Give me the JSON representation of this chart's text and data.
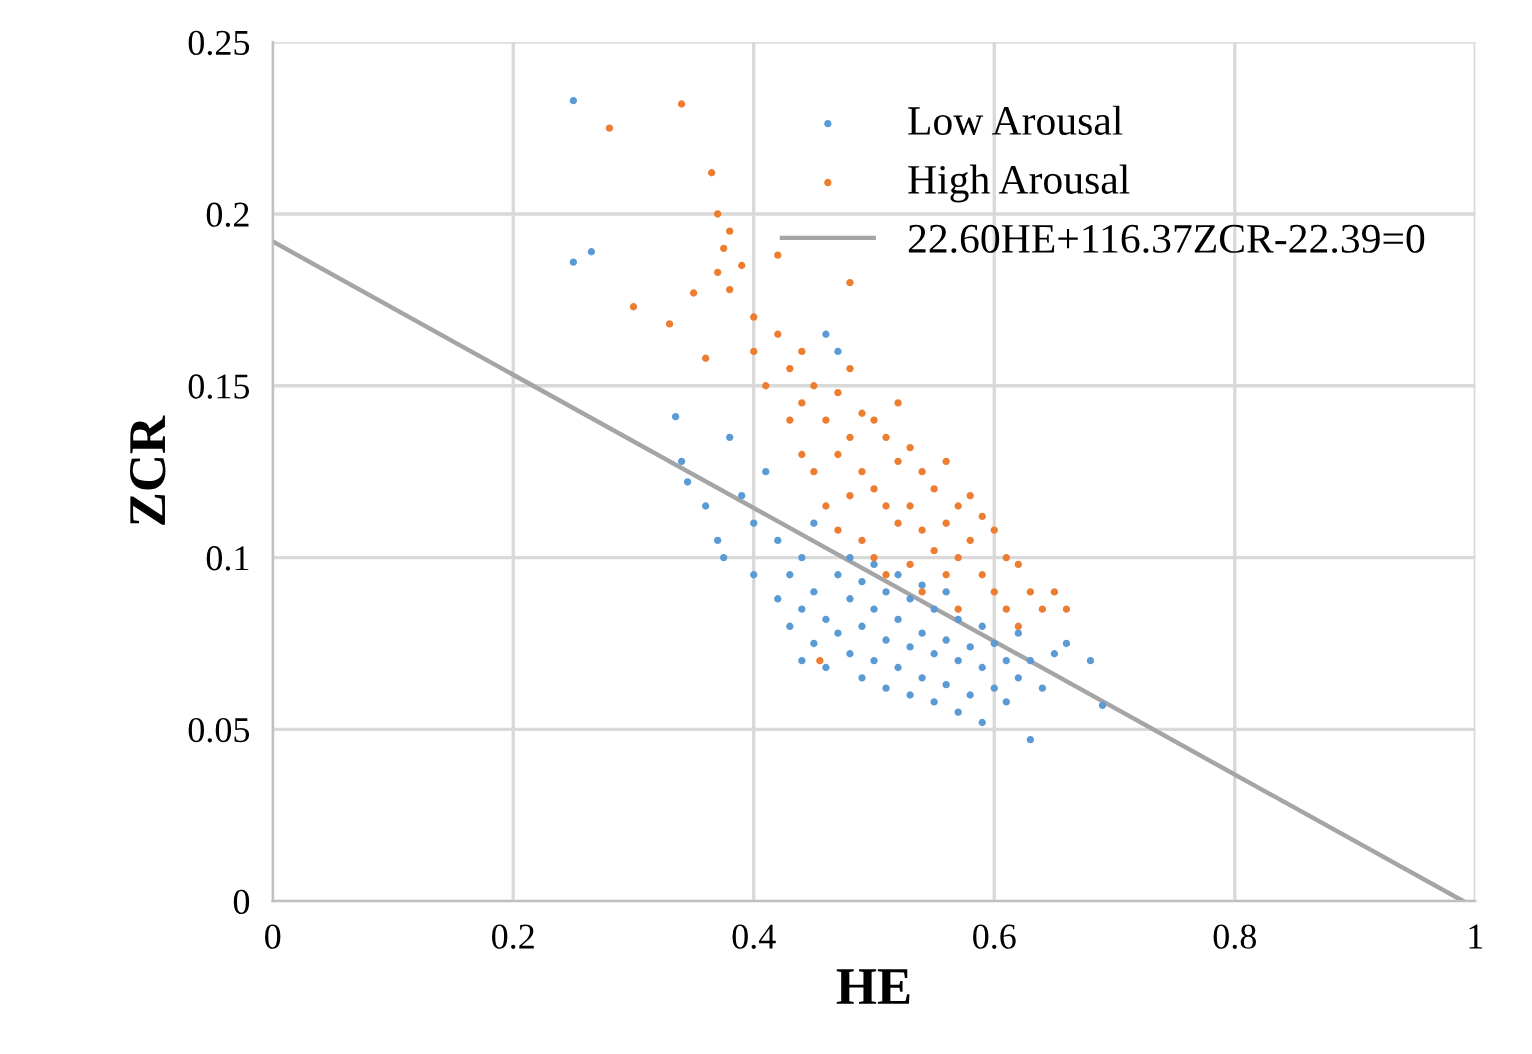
{
  "chart_data": {
    "type": "scatter",
    "xlabel": "HE",
    "ylabel": "ZCR",
    "xlim": [
      0,
      1
    ],
    "xticks": [
      0,
      0.2,
      0.4,
      0.6,
      0.8,
      1
    ],
    "ylim": [
      0,
      0.25
    ],
    "yticks": [
      0,
      0.05,
      0.1,
      0.15,
      0.2,
      0.25
    ],
    "grid": true,
    "legend": "top right",
    "marker": "circle",
    "series": [
      {
        "name": "Low Arousal",
        "color": "#5b9bd5",
        "x": [
          0.25,
          0.25,
          0.265,
          0.335,
          0.34,
          0.345,
          0.36,
          0.37,
          0.375,
          0.38,
          0.39,
          0.4,
          0.4,
          0.41,
          0.42,
          0.42,
          0.43,
          0.43,
          0.44,
          0.44,
          0.44,
          0.45,
          0.45,
          0.45,
          0.46,
          0.46,
          0.46,
          0.47,
          0.47,
          0.47,
          0.48,
          0.48,
          0.48,
          0.49,
          0.49,
          0.49,
          0.5,
          0.5,
          0.5,
          0.51,
          0.51,
          0.51,
          0.52,
          0.52,
          0.52,
          0.53,
          0.53,
          0.53,
          0.54,
          0.54,
          0.54,
          0.55,
          0.55,
          0.55,
          0.56,
          0.56,
          0.56,
          0.57,
          0.57,
          0.57,
          0.58,
          0.58,
          0.59,
          0.59,
          0.59,
          0.6,
          0.6,
          0.61,
          0.61,
          0.62,
          0.62,
          0.63,
          0.63,
          0.64,
          0.65,
          0.66,
          0.68,
          0.69
        ],
        "values": [
          0.233,
          0.186,
          0.189,
          0.141,
          0.128,
          0.122,
          0.115,
          0.105,
          0.1,
          0.135,
          0.118,
          0.11,
          0.095,
          0.125,
          0.088,
          0.105,
          0.08,
          0.095,
          0.07,
          0.085,
          0.1,
          0.075,
          0.09,
          0.11,
          0.165,
          0.068,
          0.082,
          0.078,
          0.095,
          0.16,
          0.072,
          0.088,
          0.1,
          0.065,
          0.08,
          0.093,
          0.07,
          0.085,
          0.098,
          0.062,
          0.076,
          0.09,
          0.068,
          0.082,
          0.095,
          0.06,
          0.074,
          0.088,
          0.065,
          0.078,
          0.092,
          0.058,
          0.072,
          0.085,
          0.063,
          0.076,
          0.09,
          0.055,
          0.07,
          0.082,
          0.06,
          0.074,
          0.052,
          0.068,
          0.08,
          0.062,
          0.075,
          0.058,
          0.07,
          0.065,
          0.078,
          0.047,
          0.07,
          0.062,
          0.072,
          0.075,
          0.07,
          0.057
        ]
      },
      {
        "name": "High Arousal",
        "color": "#ed7d31",
        "x": [
          0.28,
          0.34,
          0.3,
          0.33,
          0.365,
          0.37,
          0.38,
          0.375,
          0.37,
          0.38,
          0.39,
          0.35,
          0.36,
          0.4,
          0.4,
          0.41,
          0.42,
          0.43,
          0.43,
          0.44,
          0.44,
          0.44,
          0.45,
          0.45,
          0.46,
          0.46,
          0.47,
          0.47,
          0.47,
          0.48,
          0.48,
          0.48,
          0.49,
          0.49,
          0.49,
          0.5,
          0.5,
          0.5,
          0.51,
          0.51,
          0.51,
          0.52,
          0.52,
          0.52,
          0.53,
          0.53,
          0.53,
          0.54,
          0.54,
          0.54,
          0.55,
          0.55,
          0.56,
          0.56,
          0.56,
          0.57,
          0.57,
          0.57,
          0.58,
          0.58,
          0.59,
          0.59,
          0.6,
          0.6,
          0.61,
          0.61,
          0.62,
          0.62,
          0.63,
          0.64,
          0.65,
          0.66,
          0.42,
          0.48,
          0.455
        ],
        "values": [
          0.225,
          0.232,
          0.173,
          0.168,
          0.212,
          0.2,
          0.195,
          0.19,
          0.183,
          0.178,
          0.185,
          0.177,
          0.158,
          0.17,
          0.16,
          0.15,
          0.165,
          0.155,
          0.14,
          0.16,
          0.13,
          0.145,
          0.15,
          0.125,
          0.14,
          0.115,
          0.148,
          0.13,
          0.108,
          0.155,
          0.135,
          0.118,
          0.142,
          0.125,
          0.105,
          0.14,
          0.12,
          0.1,
          0.135,
          0.115,
          0.095,
          0.145,
          0.128,
          0.11,
          0.132,
          0.115,
          0.098,
          0.125,
          0.108,
          0.09,
          0.12,
          0.102,
          0.128,
          0.11,
          0.095,
          0.115,
          0.1,
          0.085,
          0.118,
          0.105,
          0.112,
          0.095,
          0.108,
          0.09,
          0.1,
          0.085,
          0.098,
          0.08,
          0.09,
          0.085,
          0.09,
          0.085,
          0.188,
          0.18,
          0.07
        ]
      },
      {
        "name": "22.60HE+116.37ZCR-22.39=0",
        "type": "line",
        "color": "#a5a5a5",
        "marker": "none",
        "x": [
          0,
          0.99
        ],
        "values": [
          0.192,
          0
        ]
      }
    ]
  }
}
